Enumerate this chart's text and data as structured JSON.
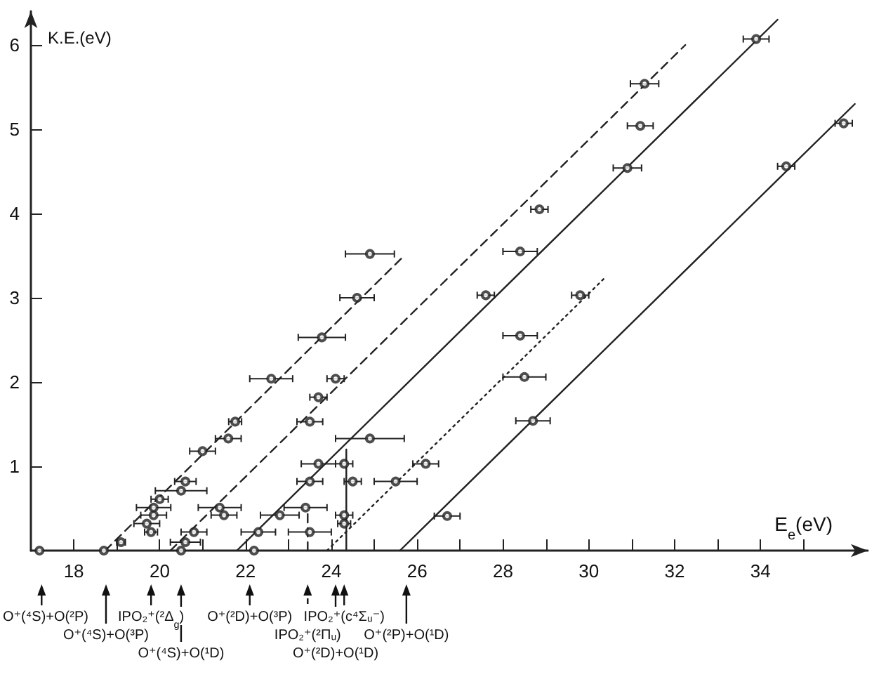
{
  "chart_data": {
    "type": "scatter",
    "xlabel": "E$_{e}$(eV)",
    "ylabel": "K.E.(eV)",
    "xlim": [
      17,
      36.5
    ],
    "ylim": [
      0,
      6.4
    ],
    "xticks": [
      18,
      {
        "value": 19,
        "label": null
      },
      20,
      {
        "value": 21,
        "label": null
      },
      22,
      {
        "value": 23,
        "label": null
      },
      24,
      {
        "value": 25,
        "label": null
      },
      26,
      {
        "value": 27,
        "label": null
      },
      28,
      {
        "value": 29,
        "label": null
      },
      30,
      {
        "value": 31,
        "label": null
      },
      32,
      {
        "value": 33,
        "label": null
      },
      34,
      {
        "value": 35,
        "label": null
      }
    ],
    "yticks": [
      1,
      2,
      3,
      4,
      5,
      6
    ],
    "grid": false,
    "series": [
      {
        "type": "line",
        "color": "#222222",
        "marker": "none",
        "line_style": "dashed",
        "x": [
          18.73,
          25.7
        ],
        "values": [
          0,
          3.5
        ]
      },
      {
        "type": "line",
        "color": "#222222",
        "marker": "none",
        "line_style": "dashed",
        "x": [
          20.25,
          32.25
        ],
        "values": [
          0,
          6.0
        ]
      },
      {
        "type": "line",
        "color": "#222222",
        "marker": "none",
        "line_style": "solid",
        "x": [
          21.8,
          34.4
        ],
        "values": [
          0,
          6.3
        ]
      },
      {
        "type": "line",
        "color": "#222222",
        "marker": "none",
        "line_style": "dotted",
        "x": [
          23.9,
          30.4
        ],
        "values": [
          0,
          3.25
        ]
      },
      {
        "type": "line",
        "color": "#222222",
        "marker": "none",
        "line_style": "solid",
        "x": [
          25.6,
          36.2
        ],
        "values": [
          0,
          5.3
        ]
      },
      {
        "type": "line",
        "color": "#222222",
        "marker": "none",
        "line_style": "solid",
        "x": [
          24.35,
          24.35
        ],
        "values": [
          0,
          1.2
        ]
      },
      {
        "type": "line",
        "color": "#222222",
        "marker": "none",
        "line_style": "dashed",
        "x": [
          23.45,
          23.45
        ],
        "values": [
          0,
          0.5
        ]
      },
      {
        "color": "#222222",
        "marker": "circle",
        "x": [
          17.2,
          18.7,
          20.5,
          22.2,
          19.1,
          19.8,
          19.7,
          19.86,
          19.86,
          20.0,
          20.5,
          20.6,
          20.6,
          20.8,
          21.0,
          21.4,
          21.5,
          21.6,
          21.76,
          22.3,
          22.6,
          22.8,
          23.4,
          23.5,
          23.5,
          23.5,
          23.7,
          23.7,
          23.78,
          24.1,
          24.3,
          24.3,
          24.3,
          24.5,
          24.6,
          24.9,
          24.9,
          25.5,
          26.2,
          26.7,
          27.6,
          28.4,
          28.4,
          28.5,
          28.7,
          28.85,
          29.8,
          30.9,
          31.2,
          31.3,
          33.9,
          34.6,
          35.94
        ],
        "values": [
          0,
          0,
          0,
          0,
          0.1,
          0.22,
          0.32,
          0.42,
          0.51,
          0.61,
          0.71,
          0.82,
          0.1,
          0.22,
          1.18,
          0.51,
          0.42,
          1.33,
          1.53,
          0.22,
          2.04,
          0.42,
          0.51,
          0.22,
          0.82,
          1.53,
          1.03,
          1.82,
          2.53,
          2.04,
          0.32,
          0.42,
          1.03,
          0.82,
          3.0,
          1.33,
          3.52,
          0.82,
          1.03,
          0.41,
          3.03,
          2.55,
          3.55,
          2.06,
          1.54,
          4.05,
          3.03,
          4.54,
          5.04,
          5.54,
          6.07,
          4.56,
          5.07
        ],
        "xerrors": [
          null,
          null,
          null,
          null,
          0.1,
          0.15,
          0.3,
          0.3,
          0.4,
          0.2,
          0.6,
          0.25,
          0.35,
          0.3,
          0.3,
          0.5,
          0.3,
          0.3,
          0.15,
          0.4,
          0.5,
          0.45,
          0.5,
          0.5,
          0.3,
          0.3,
          0.4,
          0.2,
          0.55,
          0.2,
          0.15,
          0.2,
          0.2,
          0.2,
          0.4,
          0.8,
          0.57,
          0.5,
          0.3,
          0.3,
          0.2,
          0.4,
          0.4,
          0.5,
          0.4,
          0.2,
          0.2,
          0.33,
          0.3,
          0.33,
          0.3,
          0.2,
          0.2
        ]
      }
    ],
    "ref_lines": [
      {
        "axis": "x",
        "value": 17.25,
        "label": "O⁺(⁴S)+O(²P)"
      },
      {
        "axis": "x",
        "value": 18.75,
        "label": "O⁺(⁴S)+O(³P)"
      },
      {
        "axis": "x",
        "value": 19.8,
        "label": "IPO₂⁺(²Δ$_{g}$)"
      },
      {
        "axis": "x",
        "value": 20.5,
        "label": "O⁺(⁴S)+O(¹D)"
      },
      {
        "axis": "x",
        "value": 22.1,
        "label": "O⁺(²D)+O(³P)"
      },
      {
        "axis": "x",
        "value": 23.45,
        "label": "IPO₂⁺(²Πᵤ)",
        "line_style": "dashed"
      },
      {
        "axis": "x",
        "value": 24.1,
        "label": "O⁺(²D)+O(¹D)"
      },
      {
        "axis": "x",
        "value": 24.3,
        "label": "IPO₂⁺(c⁴Σᵤ⁻)"
      },
      {
        "axis": "x",
        "value": 25.75,
        "label": "O⁺(²P)+O(¹D)"
      }
    ]
  }
}
